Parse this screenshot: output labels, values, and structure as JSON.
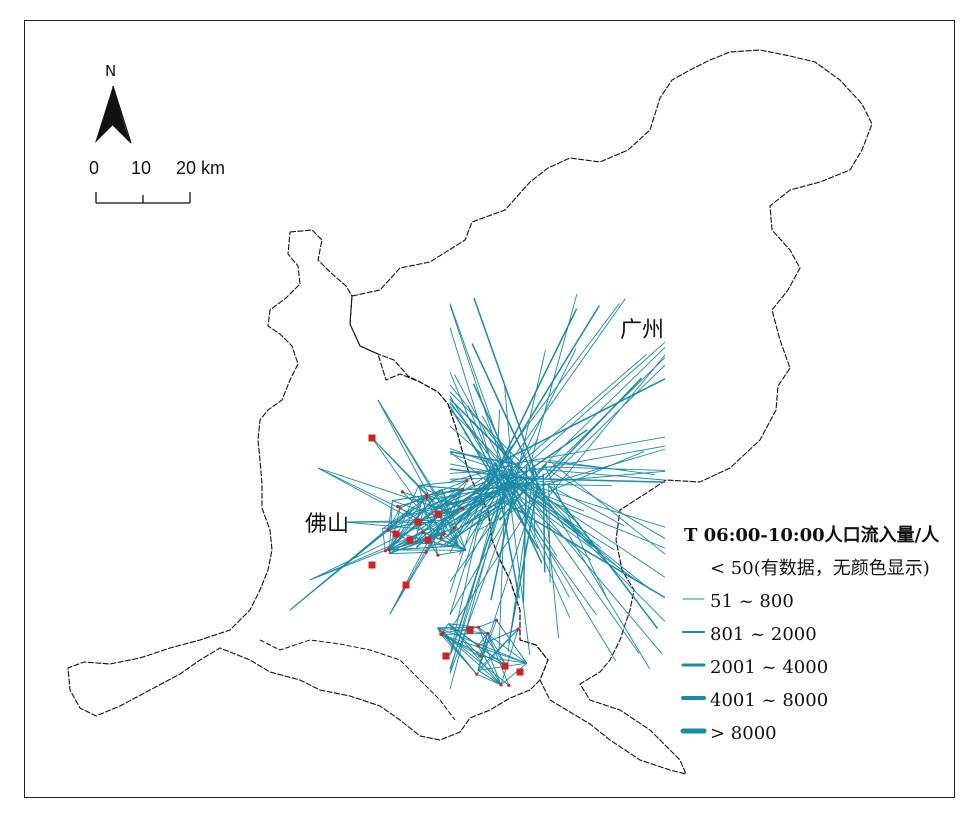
{
  "map": {
    "region_labels": {
      "guangzhou": "广州",
      "foshan": "佛山"
    },
    "north_arrow": {
      "label": "N"
    },
    "scale_bar": {
      "ticks": [
        "0",
        "10",
        "20 km"
      ]
    },
    "legend": {
      "title": "T 06:00-10:00人口流入量/人",
      "classes": [
        {
          "label": "< 50(有数据，无颜色显示)",
          "line_width": 0
        },
        {
          "label": "51 ~ 800",
          "line_width": 1
        },
        {
          "label": "801 ~ 2000",
          "line_width": 2
        },
        {
          "label": "2001 ~ 4000",
          "line_width": 3
        },
        {
          "label": "4001 ~ 8000",
          "line_width": 4
        },
        {
          "label": "> 8000",
          "line_width": 5
        }
      ]
    },
    "colors": {
      "flow_line": "#1a8aa6",
      "node": "#d42020",
      "boundary": "#111111"
    },
    "symbols": {
      "north_arrow_icon": "north-arrow-icon",
      "node_icon": "square-node-icon"
    }
  }
}
